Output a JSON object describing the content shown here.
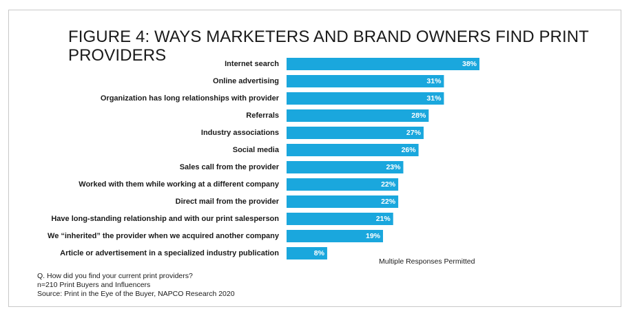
{
  "chart_data": {
    "type": "bar",
    "orientation": "horizontal",
    "title": "FIGURE 4: WAYS MARKETERS AND BRAND OWNERS FIND PRINT PROVIDERS",
    "categories": [
      "Internet search",
      "Online advertising",
      "Organization has long relationships with provider",
      "Referrals",
      "Industry associations",
      "Social media",
      "Sales call from the provider",
      "Worked with them while working at a different company",
      "Direct mail from the provider",
      "Have long-standing relationship and with our print salesperson",
      "We “inherited” the provider when we acquired another company",
      "Article or advertisement in a specialized industry publication"
    ],
    "values": [
      38,
      31,
      31,
      28,
      27,
      26,
      23,
      22,
      22,
      21,
      19,
      8
    ],
    "value_labels": [
      "38%",
      "31%",
      "31%",
      "28%",
      "27%",
      "26%",
      "23%",
      "22%",
      "22%",
      "21%",
      "19%",
      "8%"
    ],
    "unit": "%",
    "xlim": [
      0,
      38
    ],
    "grid": false,
    "bar_color": "#1aa7dd",
    "note": "Multiple Responses Permitted"
  },
  "footer": {
    "question": "Q. How did you find your current print providers?",
    "sample": "n=210 Print Buyers and Influencers",
    "source": "Source: Print in the Eye of the Buyer, NAPCO Research 2020"
  }
}
